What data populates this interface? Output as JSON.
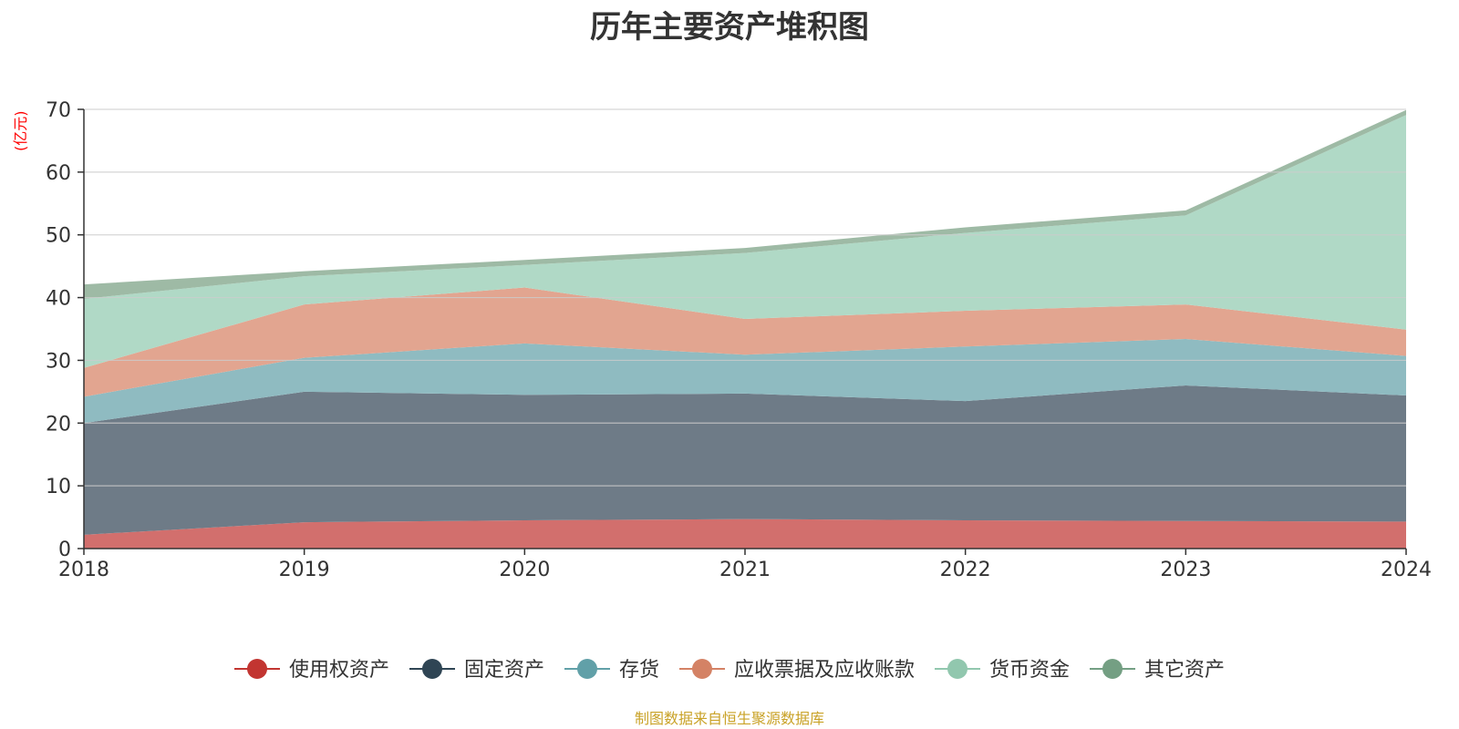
{
  "chart_data": {
    "type": "area",
    "title": "历年主要资产堆积图",
    "ylabel": "(亿元)",
    "ylim": [
      0,
      70
    ],
    "yticks": [
      0,
      10,
      20,
      30,
      40,
      50,
      60,
      70
    ],
    "x": [
      "2018",
      "2019",
      "2020",
      "2021",
      "2022",
      "2023",
      "2024"
    ],
    "stacked": true,
    "grid": true,
    "legend_position": "bottom",
    "series": [
      {
        "name": "使用权资产",
        "color": "#d26f6d",
        "marker_color": "#c23531",
        "values": [
          2.2,
          4.2,
          4.5,
          4.7,
          4.5,
          4.4,
          4.3
        ]
      },
      {
        "name": "固定资产",
        "color": "#6e7b87",
        "marker_color": "#2f4554",
        "values": [
          17.8,
          20.8,
          20.0,
          20.0,
          19.0,
          21.6,
          20.1
        ]
      },
      {
        "name": "存货",
        "color": "#8fbbc1",
        "marker_color": "#61a0a8",
        "values": [
          4.2,
          5.4,
          8.2,
          6.2,
          8.7,
          7.4,
          6.3
        ]
      },
      {
        "name": "应收票据及应收账款",
        "color": "#e2a590",
        "marker_color": "#d48265",
        "values": [
          4.6,
          8.5,
          8.9,
          5.7,
          5.7,
          5.5,
          4.2
        ]
      },
      {
        "name": "货币资金",
        "color": "#b0d9c6",
        "marker_color": "#91c7ae",
        "values": [
          11.0,
          4.5,
          3.6,
          10.5,
          12.4,
          14.2,
          34.2
        ]
      },
      {
        "name": "其它资产",
        "color": "#9ebaa5",
        "marker_color": "#749f83",
        "values": [
          2.3,
          0.8,
          0.8,
          0.8,
          0.9,
          0.8,
          0.8
        ]
      }
    ]
  },
  "footer": "制图数据来自恒生聚源数据库",
  "colors": {
    "ylabel": "#ff0000",
    "footer": "#c9a227",
    "axis": "#333333",
    "grid": "#cccccc"
  }
}
